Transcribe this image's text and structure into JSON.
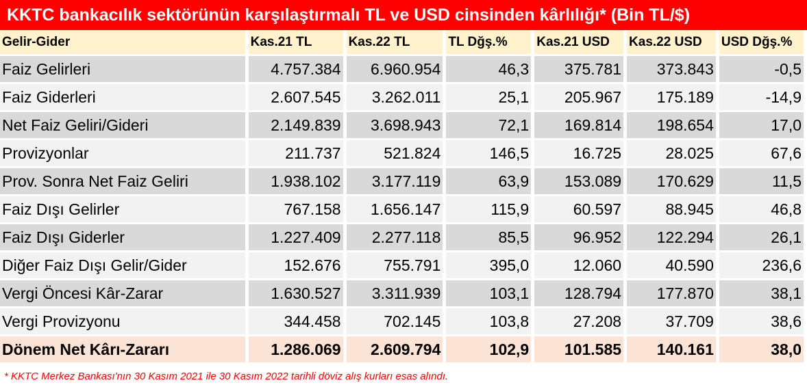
{
  "title": "KKTC bankacılık sektörünün karşılaştırmalı TL ve USD cinsinden kârlılığı* (Bin TL/$)",
  "headers": [
    "Gelir-Gider",
    "Kas.21 TL",
    "Kas.22 TL",
    "TL Dğş.%",
    "Kas.21 USD",
    "Kas.22 USD",
    "USD Dğş.%"
  ],
  "rows": [
    {
      "label": "Faiz Gelirleri",
      "c1": "4.757.384",
      "c2": "6.960.954",
      "c3": "46,3",
      "c4": "375.781",
      "c5": "373.843",
      "c6": "-0,5"
    },
    {
      "label": "Faiz Giderleri",
      "c1": "2.607.545",
      "c2": "3.262.011",
      "c3": "25,1",
      "c4": "205.967",
      "c5": "175.189",
      "c6": "-14,9"
    },
    {
      "label": "Net Faiz Geliri/Gideri",
      "c1": "2.149.839",
      "c2": "3.698.943",
      "c3": "72,1",
      "c4": "169.814",
      "c5": "198.654",
      "c6": "17,0"
    },
    {
      "label": "Provizyonlar",
      "c1": "211.737",
      "c2": "521.824",
      "c3": "146,5",
      "c4": "16.725",
      "c5": "28.025",
      "c6": "67,6"
    },
    {
      "label": "Prov. Sonra Net Faiz Geliri",
      "c1": "1.938.102",
      "c2": "3.177.119",
      "c3": "63,9",
      "c4": "153.089",
      "c5": "170.629",
      "c6": "11,5"
    },
    {
      "label": "Faiz Dışı Gelirler",
      "c1": "767.158",
      "c2": "1.656.147",
      "c3": "115,9",
      "c4": "60.597",
      "c5": "88.945",
      "c6": "46,8"
    },
    {
      "label": "Faiz Dışı Giderler",
      "c1": "1.227.409",
      "c2": "2.277.118",
      "c3": "85,5",
      "c4": "96.952",
      "c5": "122.294",
      "c6": "26,1"
    },
    {
      "label": "Diğer Faiz Dışı Gelir/Gider",
      "c1": "152.676",
      "c2": "755.791",
      "c3": "395,0",
      "c4": "12.060",
      "c5": "40.590",
      "c6": "236,6"
    },
    {
      "label": "Vergi Öncesi Kâr-Zarar",
      "c1": "1.630.527",
      "c2": "3.311.939",
      "c3": "103,1",
      "c4": "128.794",
      "c5": "177.870",
      "c6": "38,1"
    },
    {
      "label": "Vergi Provizyonu",
      "c1": "344.458",
      "c2": "702.145",
      "c3": "103,8",
      "c4": "27.208",
      "c5": "37.709",
      "c6": "38,6"
    },
    {
      "label": "Dönem Net Kârı-Zararı",
      "c1": "1.286.069",
      "c2": "2.609.794",
      "c3": "102,9",
      "c4": "101.585",
      "c5": "140.161",
      "c6": "38,0"
    }
  ],
  "footnote": "* KKTC Merkez Bankası'nın 30 Kasım 2021 ile 30 Kasım 2022 tarihli döviz alış  kurları esas alındı.",
  "colors": {
    "title_bg": "#ff0000",
    "header_bg": "#fff2cc",
    "row_grey": "#d9d9d9",
    "row_light": "#f2f2f2",
    "total_bg": "#fbe4d5"
  }
}
